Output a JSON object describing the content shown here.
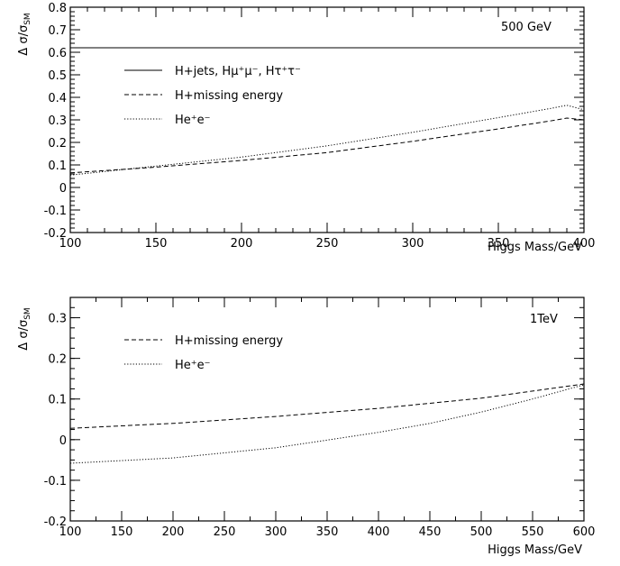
{
  "chart_data": [
    {
      "type": "line",
      "title": "",
      "ylabel": "Δ σ/σ_SM",
      "xlabel": "Higgs Mass/GeV",
      "annotation": "500 GeV",
      "xlim": [
        100,
        400
      ],
      "ylim": [
        -0.2,
        0.8
      ],
      "xticks": [
        "100",
        "150",
        "200",
        "250",
        "300",
        "350",
        "400"
      ],
      "yticks": [
        "-0.2",
        "-0.1",
        "0",
        "0.1",
        "0.2",
        "0.3",
        "0.4",
        "0.5",
        "0.6",
        "0.7",
        "0.8"
      ],
      "x_minor_step": 10,
      "y_minor_step": 0.02,
      "legend_placement": "upper-left",
      "series": [
        {
          "name": "H+jets, Hμ⁺μ⁻, Hτ⁺τ⁻",
          "style": "solid",
          "x": [
            100,
            400
          ],
          "y": [
            0.62,
            0.62
          ]
        },
        {
          "name": "H+missing energy",
          "style": "dashed",
          "x": [
            100,
            150,
            200,
            250,
            300,
            350,
            380,
            390,
            400
          ],
          "y": [
            0.065,
            0.09,
            0.12,
            0.155,
            0.205,
            0.26,
            0.295,
            0.308,
            0.3
          ]
        },
        {
          "name": "He⁺e⁻",
          "style": "dotted",
          "x": [
            100,
            150,
            200,
            250,
            300,
            350,
            380,
            390,
            400
          ],
          "y": [
            0.055,
            0.095,
            0.135,
            0.185,
            0.245,
            0.31,
            0.35,
            0.365,
            0.345
          ]
        }
      ]
    },
    {
      "type": "line",
      "title": "",
      "ylabel": "Δ σ/σ_SM",
      "xlabel": "Higgs Mass/GeV",
      "annotation": "1TeV",
      "xlim": [
        100,
        600
      ],
      "ylim": [
        -0.2,
        0.35
      ],
      "xticks": [
        "100",
        "150",
        "200",
        "250",
        "300",
        "350",
        "400",
        "450",
        "500",
        "550",
        "600"
      ],
      "yticks": [
        "-0.2",
        "-0.1",
        "0",
        "0.1",
        "0.2",
        "0.3"
      ],
      "x_minor_step": 25,
      "y_minor_step": 0.025,
      "legend_placement": "upper-left",
      "series": [
        {
          "name": "H+missing energy",
          "style": "dashed",
          "x": [
            100,
            200,
            300,
            400,
            500,
            600
          ],
          "y": [
            0.028,
            0.04,
            0.057,
            0.077,
            0.102,
            0.137
          ]
        },
        {
          "name": "He⁺e⁻",
          "style": "dotted",
          "x": [
            100,
            200,
            300,
            350,
            400,
            450,
            500,
            550,
            600
          ],
          "y": [
            -0.058,
            -0.045,
            -0.02,
            -0.001,
            0.018,
            0.04,
            0.068,
            0.1,
            0.135
          ]
        }
      ]
    }
  ]
}
